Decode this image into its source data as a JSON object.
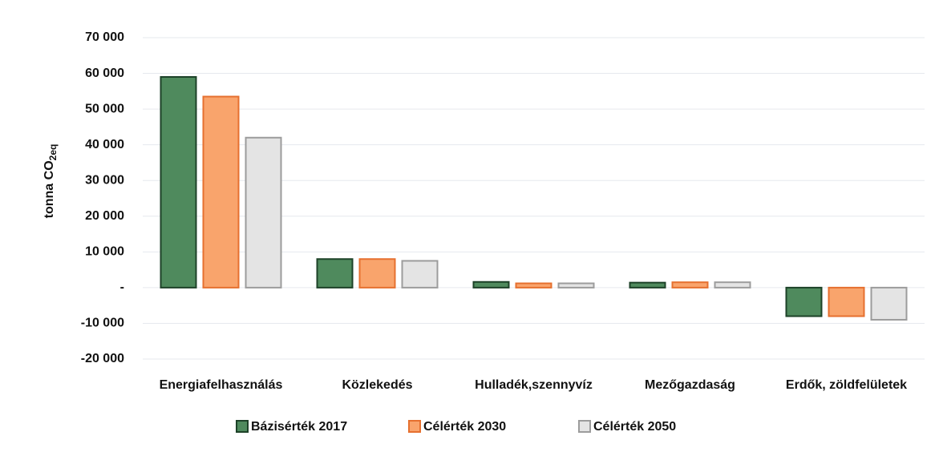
{
  "chart_data": {
    "type": "bar",
    "ylabel": "tonna CO",
    "ylabel_subscript": "2eq",
    "categories": [
      "Energiafelhasználás",
      "Közlekedés",
      "Hulladék,szennyvíz",
      "Mezőgazdaság",
      "Erdők, zöldfelületek"
    ],
    "series": [
      {
        "name": "Bázisérték 2017",
        "color": "#4f8a5d",
        "edgecolor": "#1d4228",
        "values": [
          59000,
          8000,
          1600,
          1400,
          -8000
        ]
      },
      {
        "name": "Célérték 2030",
        "color": "#f9a46c",
        "edgecolor": "#e6702f",
        "values": [
          53500,
          8000,
          1200,
          1500,
          -8000
        ]
      },
      {
        "name": "Célérték 2050",
        "color": "#e4e4e4",
        "edgecolor": "#9c9c9c",
        "values": [
          42000,
          7500,
          1200,
          1500,
          -9000
        ]
      }
    ],
    "ylim": [
      -20000,
      70000
    ],
    "yticks": [
      {
        "value": -20000,
        "label": "-20 000"
      },
      {
        "value": -10000,
        "label": "-10 000"
      },
      {
        "value": 0,
        "label": "-"
      },
      {
        "value": 10000,
        "label": "10 000"
      },
      {
        "value": 20000,
        "label": "20 000"
      },
      {
        "value": 30000,
        "label": "30 000"
      },
      {
        "value": 40000,
        "label": "40 000"
      },
      {
        "value": 50000,
        "label": "50 000"
      },
      {
        "value": 60000,
        "label": "60 000"
      },
      {
        "value": 70000,
        "label": "70 000"
      }
    ],
    "grid": true,
    "legend": "bottom"
  }
}
